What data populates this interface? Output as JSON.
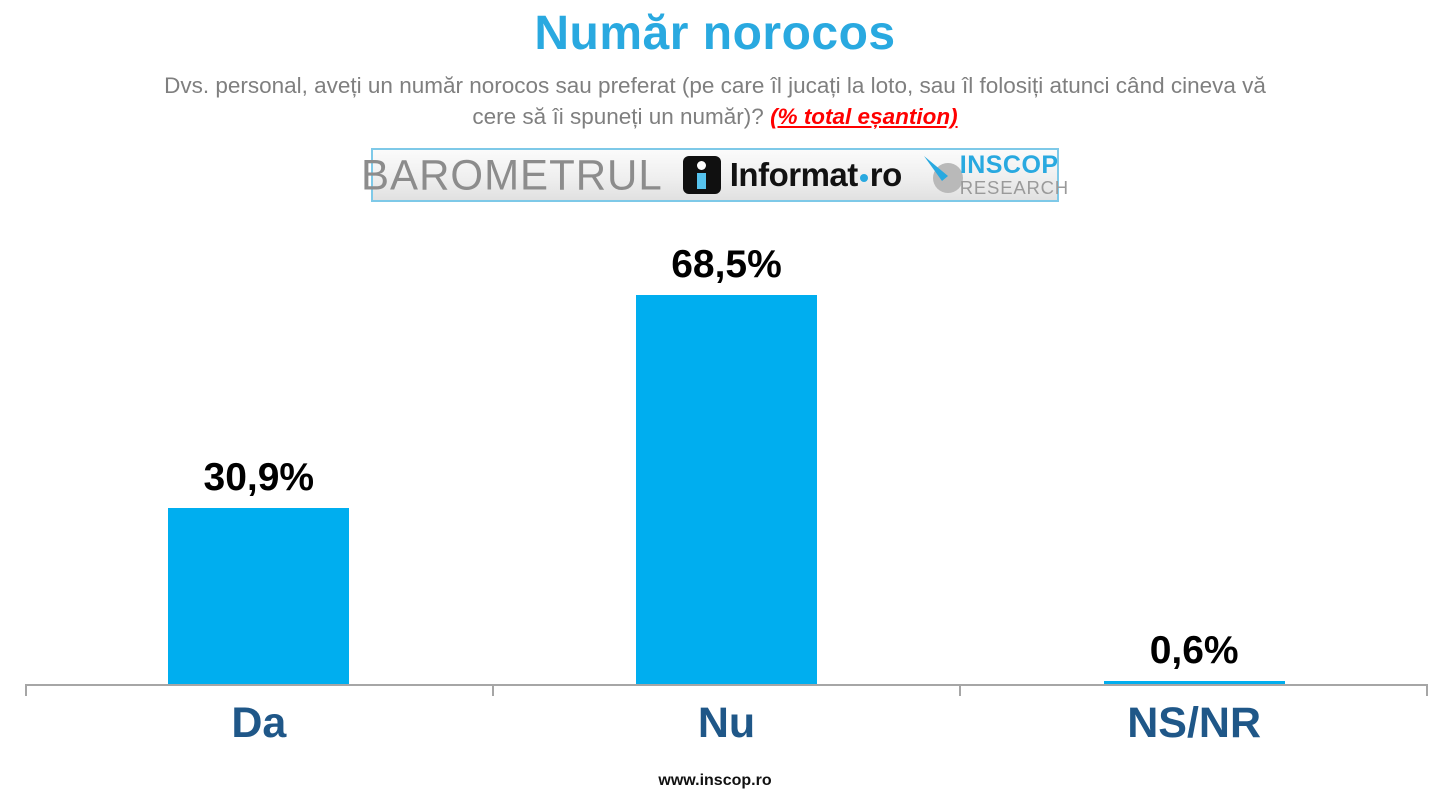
{
  "title": "Număr norocos",
  "subtitle": {
    "line1": "Dvs. personal, aveți un număr norocos sau preferat (pe care îl jucați la loto, sau îl folosiți atunci când cineva vă",
    "line2": "cere să îi spuneți un număr)? ",
    "highlight": "(% total eșantion)"
  },
  "logos": {
    "barometrul": "BAROMETRUL",
    "informat_name": "Informat",
    "informat_tld": "ro",
    "inscop_line1": "INSCOP",
    "inscop_line2": "RESEARCH"
  },
  "chart_data": {
    "type": "bar",
    "categories": [
      "Da",
      "Nu",
      "NS/NR"
    ],
    "values": [
      30.9,
      68.5,
      0.6
    ],
    "value_labels": [
      "30,9%",
      "68,5%",
      "0,6%"
    ],
    "title": "Număr norocos",
    "xlabel": "",
    "ylabel": "",
    "ylim": [
      0,
      80
    ],
    "grid": false,
    "legend": false,
    "bar_color": "#00aeef",
    "value_label_color": "#000000",
    "category_label_color": "#1f5788",
    "axis_color": "#a6a6a6"
  },
  "colors": {
    "title_blue": "#29a9e0",
    "subtitle_gray": "#7f7f7f",
    "highlight_red": "#ff0000",
    "bar_cyan": "#00aeef",
    "category_blue": "#1f5788"
  },
  "footer": "www.inscop.ro"
}
